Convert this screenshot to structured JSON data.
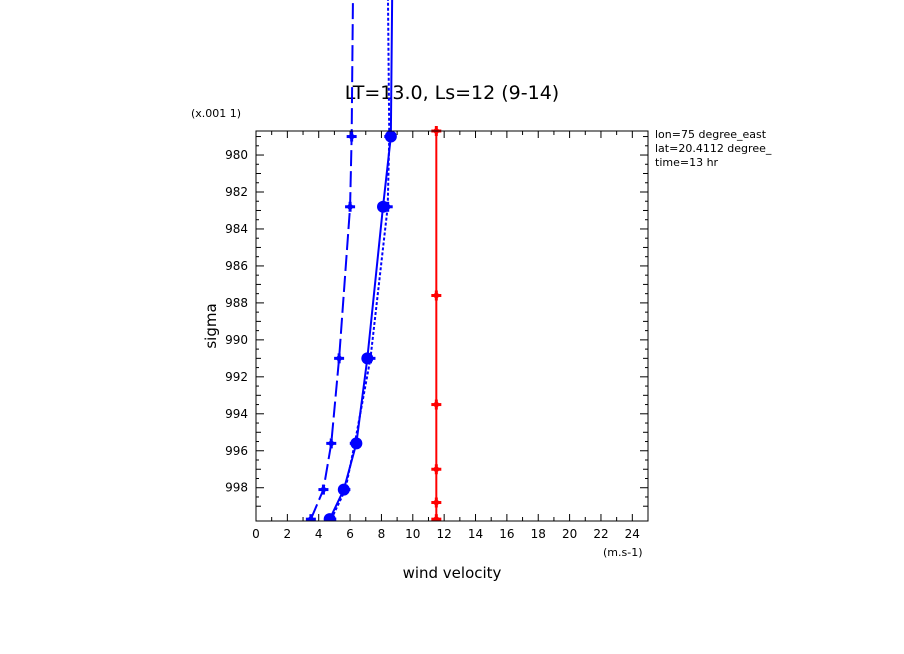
{
  "chart_data": {
    "type": "line",
    "title": "LT=13.0, Ls=12 (9-14)",
    "xlabel": "wind velocity",
    "ylabel": "sigma",
    "x_units": "(m.s-1)",
    "y_scale_label": "(x.001 1)",
    "xlim": [
      0,
      25
    ],
    "ylim": [
      999.8,
      978.7
    ],
    "y_inverted": true,
    "x_ticks": [
      0,
      2,
      4,
      6,
      8,
      10,
      12,
      14,
      16,
      18,
      20,
      22,
      24
    ],
    "x_tick_labels": [
      "0",
      "2",
      "4",
      "6",
      "8",
      "10",
      "12",
      "14",
      "16",
      "18",
      "20",
      "22",
      "24"
    ],
    "y_ticks": [
      980,
      982,
      984,
      986,
      988,
      990,
      992,
      994,
      996,
      998
    ],
    "y_tick_labels": [
      "980",
      "982",
      "984",
      "986",
      "988",
      "990",
      "992",
      "994",
      "996",
      "998"
    ],
    "grid": false,
    "info_lines": [
      "lon=75 degree_east",
      "lat=20.4112 degree_",
      "time=13 hr"
    ],
    "series": [
      {
        "color": "#0000ff",
        "style": "long-dash",
        "marker": "star",
        "x": [
          3.5,
          4.3,
          4.8,
          5.3,
          6.0,
          6.1,
          6.2
        ],
        "y": [
          999.7,
          998.1,
          995.6,
          991.0,
          982.8,
          979.0,
          970.0
        ]
      },
      {
        "color": "#0000ff",
        "style": "solid",
        "marker": "dot",
        "x": [
          4.7,
          5.6,
          6.4,
          7.1,
          8.1,
          8.6,
          8.7
        ],
        "y": [
          999.7,
          998.1,
          995.6,
          991.0,
          982.8,
          979.0,
          970.0
        ]
      },
      {
        "color": "#0000ff",
        "style": "short-dash",
        "marker": "star",
        "x": [
          4.8,
          5.7,
          6.3,
          7.3,
          8.4,
          8.5,
          8.4
        ],
        "y": [
          999.7,
          998.1,
          995.6,
          991.0,
          982.8,
          979.0,
          970.0
        ]
      },
      {
        "color": "#ff0000",
        "style": "solid",
        "marker": "star",
        "x": [
          11.5,
          11.5,
          11.5,
          11.5,
          11.5,
          11.5
        ],
        "y": [
          999.7,
          998.8,
          997.0,
          993.5,
          987.6,
          978.7
        ]
      }
    ]
  }
}
